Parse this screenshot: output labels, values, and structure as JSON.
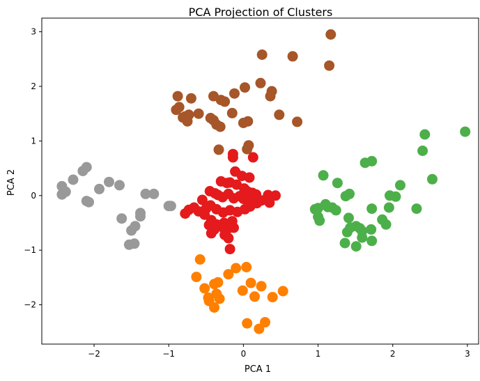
{
  "chart_data": {
    "type": "scatter",
    "title": "PCA Projection of Clusters",
    "xlabel": "PCA 1",
    "ylabel": "PCA 2",
    "xlim": [
      -2.7,
      3.15
    ],
    "ylim": [
      -2.72,
      3.25
    ],
    "xticks": [
      -2,
      -1,
      0,
      1,
      2,
      3
    ],
    "yticks": [
      -2,
      -1,
      0,
      1,
      2,
      3
    ],
    "xtick_labels": [
      "−2",
      "−1",
      "0",
      "1",
      "2",
      "3"
    ],
    "ytick_labels": [
      "−2",
      "−1",
      "0",
      "1",
      "2",
      "3"
    ],
    "grid": false,
    "legend": "none",
    "series": [
      {
        "color": "#a65628",
        "points": [
          [
            1.17,
            2.95
          ],
          [
            1.15,
            2.38
          ],
          [
            0.25,
            2.58
          ],
          [
            0.66,
            2.55
          ],
          [
            0.23,
            2.06
          ],
          [
            0.02,
            1.98
          ],
          [
            -0.12,
            1.87
          ],
          [
            0.38,
            1.91
          ],
          [
            0.36,
            1.82
          ],
          [
            -0.88,
            1.82
          ],
          [
            -0.7,
            1.78
          ],
          [
            -0.4,
            1.82
          ],
          [
            -0.3,
            1.75
          ],
          [
            -0.25,
            1.72
          ],
          [
            -0.86,
            1.62
          ],
          [
            -0.9,
            1.57
          ],
          [
            -0.78,
            1.45
          ],
          [
            -0.81,
            1.43
          ],
          [
            -0.73,
            1.48
          ],
          [
            -0.6,
            1.5
          ],
          [
            -0.44,
            1.42
          ],
          [
            -0.4,
            1.38
          ],
          [
            -0.36,
            1.3
          ],
          [
            -0.31,
            1.26
          ],
          [
            -0.15,
            1.51
          ],
          [
            0.48,
            1.48
          ],
          [
            0.72,
            1.35
          ],
          [
            -0.75,
            1.36
          ],
          [
            0.0,
            1.33
          ],
          [
            0.06,
            1.36
          ],
          [
            -0.33,
            0.84
          ],
          [
            0.05,
            0.85
          ],
          [
            0.07,
            0.92
          ]
        ]
      },
      {
        "color": "#999999",
        "points": [
          [
            -2.43,
            0.17
          ],
          [
            -2.38,
            0.07
          ],
          [
            -2.43,
            0.02
          ],
          [
            -2.28,
            0.29
          ],
          [
            -2.15,
            0.45
          ],
          [
            -2.1,
            0.52
          ],
          [
            -1.93,
            0.12
          ],
          [
            -1.8,
            0.25
          ],
          [
            -1.66,
            0.19
          ],
          [
            -2.1,
            -0.1
          ],
          [
            -2.07,
            -0.12
          ],
          [
            -1.63,
            -0.42
          ],
          [
            -1.5,
            -0.64
          ],
          [
            -1.45,
            -0.56
          ],
          [
            -1.38,
            -0.32
          ],
          [
            -1.38,
            -0.38
          ],
          [
            -1.31,
            0.03
          ],
          [
            -1.2,
            0.03
          ],
          [
            -1.53,
            -0.9
          ],
          [
            -1.46,
            -0.88
          ],
          [
            -1.0,
            -0.19
          ],
          [
            -0.97,
            -0.19
          ]
        ]
      },
      {
        "color": "#e41a1c",
        "points": [
          [
            -0.14,
            0.76
          ],
          [
            -0.14,
            0.7
          ],
          [
            0.13,
            0.7
          ],
          [
            -0.11,
            0.44
          ],
          [
            -0.02,
            0.36
          ],
          [
            0.08,
            0.33
          ],
          [
            -0.3,
            0.26
          ],
          [
            -0.22,
            0.23
          ],
          [
            -0.18,
            0.24
          ],
          [
            -0.09,
            0.2
          ],
          [
            0.01,
            0.13
          ],
          [
            0.05,
            0.08
          ],
          [
            0.12,
            0.05
          ],
          [
            0.17,
            0.02
          ],
          [
            -0.45,
            0.08
          ],
          [
            -0.38,
            0.04
          ],
          [
            -0.34,
            0.01
          ],
          [
            -0.28,
            -0.03
          ],
          [
            -0.2,
            0.03
          ],
          [
            -0.13,
            -0.05
          ],
          [
            -0.05,
            -0.01
          ],
          [
            0.0,
            -0.06
          ],
          [
            0.06,
            -0.1
          ],
          [
            0.1,
            -0.11
          ],
          [
            0.18,
            -0.14
          ],
          [
            0.24,
            -0.09
          ],
          [
            0.33,
            0.01
          ],
          [
            0.43,
            0.0
          ],
          [
            0.35,
            -0.13
          ],
          [
            -0.55,
            -0.08
          ],
          [
            -0.66,
            -0.22
          ],
          [
            -0.73,
            -0.26
          ],
          [
            -0.78,
            -0.33
          ],
          [
            -0.6,
            -0.29
          ],
          [
            -0.5,
            -0.24
          ],
          [
            -0.44,
            -0.18
          ],
          [
            -0.36,
            -0.25
          ],
          [
            -0.27,
            -0.31
          ],
          [
            -0.18,
            -0.27
          ],
          [
            -0.08,
            -0.3
          ],
          [
            0.02,
            -0.25
          ],
          [
            0.09,
            -0.2
          ],
          [
            -0.52,
            -0.35
          ],
          [
            -0.43,
            -0.45
          ],
          [
            -0.46,
            -0.54
          ],
          [
            -0.36,
            -0.53
          ],
          [
            -0.26,
            -0.5
          ],
          [
            -0.15,
            -0.47
          ],
          [
            -0.13,
            -0.59
          ],
          [
            -0.2,
            -0.6
          ],
          [
            -0.28,
            -0.58
          ],
          [
            -0.39,
            -0.62
          ],
          [
            -0.43,
            -0.69
          ],
          [
            -0.25,
            -0.72
          ],
          [
            -0.2,
            -0.78
          ],
          [
            -0.18,
            -0.98
          ]
        ]
      },
      {
        "color": "#4daf4a",
        "points": [
          [
            2.97,
            1.17
          ],
          [
            2.43,
            1.12
          ],
          [
            2.4,
            0.82
          ],
          [
            2.53,
            0.3
          ],
          [
            1.72,
            0.63
          ],
          [
            1.63,
            0.6
          ],
          [
            2.1,
            0.19
          ],
          [
            1.96,
            0.0
          ],
          [
            2.04,
            -0.02
          ],
          [
            2.32,
            -0.24
          ],
          [
            1.95,
            -0.22
          ],
          [
            1.72,
            -0.24
          ],
          [
            1.07,
            0.37
          ],
          [
            1.26,
            0.23
          ],
          [
            1.42,
            0.03
          ],
          [
            1.37,
            -0.01
          ],
          [
            1.1,
            -0.16
          ],
          [
            1.13,
            -0.21
          ],
          [
            1.19,
            -0.22
          ],
          [
            1.24,
            -0.27
          ],
          [
            0.96,
            -0.25
          ],
          [
            1.0,
            -0.23
          ],
          [
            1.0,
            -0.39
          ],
          [
            1.02,
            -0.46
          ],
          [
            1.41,
            -0.41
          ],
          [
            1.43,
            -0.59
          ],
          [
            1.51,
            -0.56
          ],
          [
            1.56,
            -0.6
          ],
          [
            1.59,
            -0.65
          ],
          [
            1.39,
            -0.67
          ],
          [
            1.86,
            -0.44
          ],
          [
            1.91,
            -0.53
          ],
          [
            1.71,
            -0.62
          ],
          [
            1.59,
            -0.77
          ],
          [
            1.72,
            -0.83
          ],
          [
            1.36,
            -0.87
          ],
          [
            1.51,
            -0.93
          ]
        ]
      },
      {
        "color": "#ff7f00",
        "points": [
          [
            -0.58,
            -1.17
          ],
          [
            -0.63,
            -1.49
          ],
          [
            -0.52,
            -1.7
          ],
          [
            -0.47,
            -1.87
          ],
          [
            -0.46,
            -1.93
          ],
          [
            -0.36,
            -1.8
          ],
          [
            -0.39,
            -1.62
          ],
          [
            -0.34,
            -1.59
          ],
          [
            -0.32,
            -1.89
          ],
          [
            -0.39,
            -2.05
          ],
          [
            -0.2,
            -1.44
          ],
          [
            -0.1,
            -1.33
          ],
          [
            0.04,
            -1.31
          ],
          [
            0.1,
            -1.6
          ],
          [
            -0.01,
            -1.74
          ],
          [
            0.15,
            -1.85
          ],
          [
            0.39,
            -1.86
          ],
          [
            0.53,
            -1.75
          ],
          [
            0.24,
            -1.66
          ],
          [
            0.05,
            -2.34
          ],
          [
            0.29,
            -2.32
          ],
          [
            0.21,
            -2.44
          ]
        ]
      }
    ]
  }
}
